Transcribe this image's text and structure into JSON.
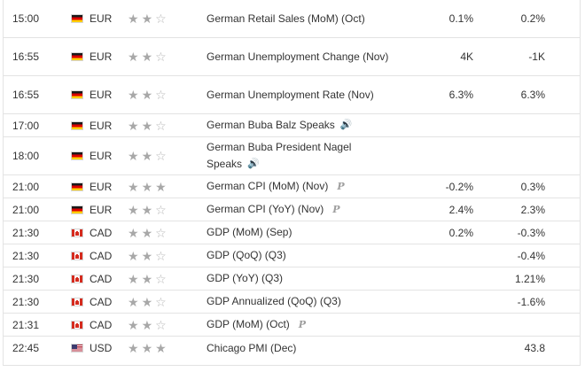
{
  "icons": {
    "star_filled": "★",
    "star_empty": "☆",
    "speaker": "🔊",
    "preliminary": "P"
  },
  "colors": {
    "border": "#e3e3e3",
    "text": "#333333",
    "star": "#a8a8a8"
  },
  "events": [
    {
      "time": "15:00",
      "country": "Germany",
      "flag": "de",
      "currency": "EUR",
      "stars": 2,
      "event": "German Retail Sales (MoM) (Oct)",
      "icon": "",
      "actual": "0.1%",
      "forecast": "0.2%"
    },
    {
      "time": "16:55",
      "country": "Germany",
      "flag": "de",
      "currency": "EUR",
      "stars": 2,
      "event": "German Unemployment Change (Nov)",
      "icon": "",
      "actual": "4K",
      "forecast": "-1K"
    },
    {
      "time": "16:55",
      "country": "Germany",
      "flag": "de",
      "currency": "EUR",
      "stars": 2,
      "event": "German Unemployment Rate (Nov)",
      "icon": "",
      "actual": "6.3%",
      "forecast": "6.3%"
    },
    {
      "time": "17:00",
      "country": "Germany",
      "flag": "de",
      "currency": "EUR",
      "stars": 2,
      "event": "German Buba Balz Speaks",
      "icon": "speaker",
      "actual": "",
      "forecast": ""
    },
    {
      "time": "18:00",
      "country": "Germany",
      "flag": "de",
      "currency": "EUR",
      "stars": 2,
      "event": "German Buba President Nagel Speaks",
      "icon": "speaker",
      "actual": "",
      "forecast": ""
    },
    {
      "time": "21:00",
      "country": "Germany",
      "flag": "de",
      "currency": "EUR",
      "stars": 3,
      "event": "German CPI (MoM) (Nov)",
      "icon": "preliminary",
      "actual": "-0.2%",
      "forecast": "0.3%"
    },
    {
      "time": "21:00",
      "country": "Germany",
      "flag": "de",
      "currency": "EUR",
      "stars": 2,
      "event": "German CPI (YoY) (Nov)",
      "icon": "preliminary",
      "actual": "2.4%",
      "forecast": "2.3%"
    },
    {
      "time": "21:30",
      "country": "Canada",
      "flag": "ca",
      "currency": "CAD",
      "stars": 2,
      "event": "GDP (MoM) (Sep)",
      "icon": "",
      "actual": "0.2%",
      "forecast": "-0.3%"
    },
    {
      "time": "21:30",
      "country": "Canada",
      "flag": "ca",
      "currency": "CAD",
      "stars": 2,
      "event": "GDP (QoQ) (Q3)",
      "icon": "",
      "actual": "",
      "forecast": "-0.4%"
    },
    {
      "time": "21:30",
      "country": "Canada",
      "flag": "ca",
      "currency": "CAD",
      "stars": 2,
      "event": "GDP (YoY) (Q3)",
      "icon": "",
      "actual": "",
      "forecast": "1.21%"
    },
    {
      "time": "21:30",
      "country": "Canada",
      "flag": "ca",
      "currency": "CAD",
      "stars": 2,
      "event": "GDP Annualized (QoQ) (Q3)",
      "icon": "",
      "actual": "",
      "forecast": "-1.6%"
    },
    {
      "time": "21:31",
      "country": "Canada",
      "flag": "ca",
      "currency": "CAD",
      "stars": 2,
      "event": "GDP (MoM) (Oct)",
      "icon": "preliminary",
      "actual": "",
      "forecast": ""
    },
    {
      "time": "22:45",
      "country": "United States",
      "flag": "us",
      "currency": "USD",
      "stars": 3,
      "event": "Chicago PMI (Dec)",
      "icon": "",
      "actual": "",
      "forecast": "43.8"
    }
  ]
}
